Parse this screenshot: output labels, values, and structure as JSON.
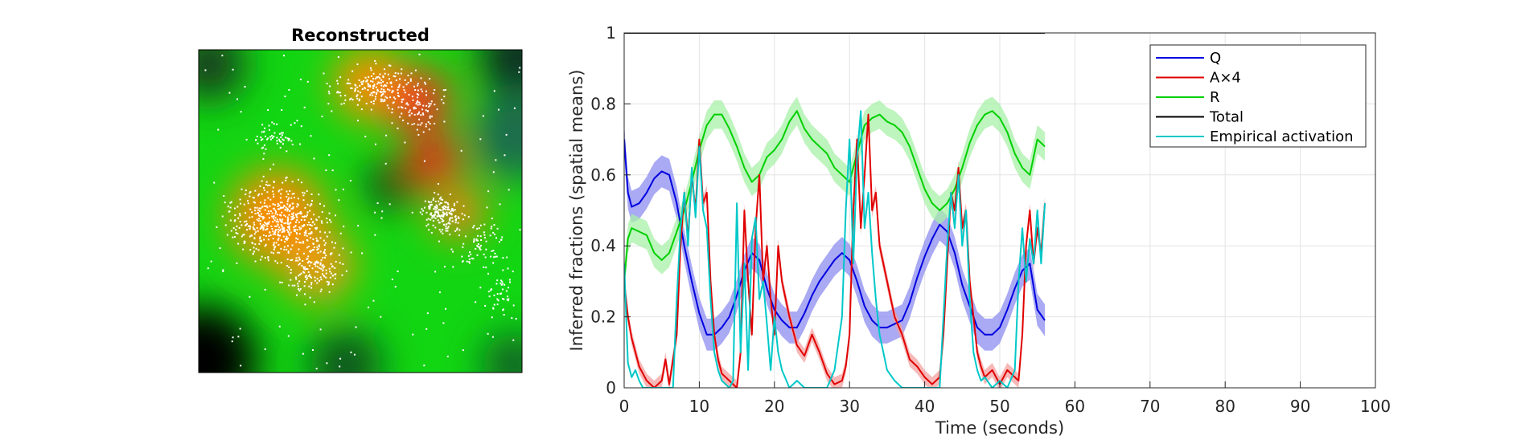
{
  "image_panel": {
    "title": "Reconstructed"
  },
  "chart_data": {
    "type": "line",
    "xlabel": "Time (seconds)",
    "ylabel": "Inferred fractions (spatial means)",
    "xlim": [
      0,
      100
    ],
    "ylim": [
      0,
      1
    ],
    "xticks": [
      0,
      10,
      20,
      30,
      40,
      50,
      60,
      70,
      80,
      90,
      100
    ],
    "yticks": [
      0,
      0.2,
      0.4,
      0.6,
      0.8,
      1
    ],
    "grid": true,
    "legend_position": "top-right",
    "series": [
      {
        "name": "Q",
        "color": "#0000e0",
        "band_color": "#8c8cf0",
        "x": [
          0,
          0.5,
          1,
          2,
          3,
          4,
          5,
          6,
          7,
          8,
          9,
          10,
          11,
          12,
          13,
          14,
          15,
          16,
          17,
          18,
          19,
          20,
          21,
          22,
          23,
          24,
          25,
          26,
          27,
          28,
          29,
          30,
          31,
          32,
          33,
          34,
          35,
          36,
          37,
          38,
          39,
          40,
          41,
          42,
          43,
          44,
          45,
          46,
          47,
          48,
          49,
          50,
          51,
          52,
          53,
          54,
          55,
          56
        ],
        "y": [
          0.7,
          0.55,
          0.51,
          0.52,
          0.55,
          0.59,
          0.61,
          0.6,
          0.52,
          0.4,
          0.3,
          0.21,
          0.15,
          0.15,
          0.17,
          0.2,
          0.26,
          0.33,
          0.38,
          0.36,
          0.28,
          0.22,
          0.19,
          0.17,
          0.17,
          0.21,
          0.26,
          0.3,
          0.33,
          0.36,
          0.38,
          0.36,
          0.3,
          0.23,
          0.19,
          0.17,
          0.17,
          0.18,
          0.19,
          0.24,
          0.31,
          0.37,
          0.42,
          0.46,
          0.44,
          0.38,
          0.29,
          0.23,
          0.17,
          0.15,
          0.15,
          0.17,
          0.22,
          0.28,
          0.33,
          0.35,
          0.22,
          0.19
        ],
        "band": 0.045
      },
      {
        "name": "A×4",
        "color": "#e00000",
        "band_color": "#f4a0a0",
        "x": [
          0,
          0.5,
          1,
          1.5,
          2,
          2.5,
          3,
          4,
          5,
          5.5,
          6,
          7,
          7.5,
          8,
          8.5,
          9,
          9.5,
          10,
          10.5,
          11,
          11.5,
          12,
          12.5,
          13,
          14,
          15,
          15.5,
          16,
          16.5,
          17,
          17.5,
          18,
          18.5,
          19,
          19.5,
          20,
          20.5,
          21,
          22,
          23,
          24,
          25,
          26,
          27,
          28,
          29,
          29.5,
          30,
          30.5,
          31,
          31.5,
          32,
          32.5,
          33,
          33.5,
          34,
          35,
          36,
          37,
          38,
          39,
          40,
          41,
          42,
          42.5,
          43,
          43.5,
          44,
          44.5,
          45,
          45.5,
          46,
          46.5,
          47,
          47.5,
          48,
          49,
          50,
          51,
          52,
          52.5,
          53,
          53.5,
          54,
          54.5,
          55,
          55.5,
          56
        ],
        "y": [
          0.3,
          0.2,
          0.14,
          0.1,
          0.06,
          0.04,
          0.02,
          0,
          0.02,
          0.08,
          0.01,
          0.15,
          0.4,
          0.55,
          0.42,
          0.6,
          0.5,
          0.7,
          0.52,
          0.55,
          0.3,
          0.15,
          0.08,
          0.04,
          0.02,
          0,
          0.1,
          0.5,
          0.3,
          0.15,
          0.45,
          0.6,
          0.3,
          0.4,
          0.25,
          0.15,
          0.4,
          0.3,
          0.2,
          0.12,
          0.09,
          0.15,
          0.1,
          0.04,
          0.01,
          0.02,
          0.06,
          0.15,
          0.5,
          0.7,
          0.45,
          0.6,
          0.77,
          0.5,
          0.55,
          0.4,
          0.3,
          0.2,
          0.15,
          0.08,
          0.06,
          0.03,
          0.01,
          0.03,
          0.15,
          0.35,
          0.55,
          0.5,
          0.62,
          0.45,
          0.5,
          0.3,
          0.2,
          0.1,
          0.06,
          0.03,
          0.05,
          0.01,
          0.05,
          0.03,
          0.02,
          0.15,
          0.4,
          0.5,
          0.35,
          0.45,
          0.38,
          0.52
        ],
        "band": 0.02
      },
      {
        "name": "R",
        "color": "#00d000",
        "band_color": "#a8f0a8",
        "x": [
          0,
          0.5,
          1,
          2,
          3,
          4,
          5,
          6,
          7,
          8,
          9,
          10,
          11,
          12,
          13,
          14,
          15,
          16,
          17,
          18,
          19,
          20,
          21,
          22,
          23,
          24,
          25,
          26,
          27,
          28,
          29,
          30,
          31,
          32,
          33,
          34,
          35,
          36,
          37,
          38,
          39,
          40,
          41,
          42,
          43,
          44,
          45,
          46,
          47,
          48,
          49,
          50,
          51,
          52,
          53,
          54,
          55,
          56
        ],
        "y": [
          0.3,
          0.42,
          0.45,
          0.44,
          0.43,
          0.38,
          0.36,
          0.38,
          0.44,
          0.5,
          0.58,
          0.67,
          0.74,
          0.77,
          0.77,
          0.73,
          0.68,
          0.62,
          0.58,
          0.6,
          0.65,
          0.67,
          0.7,
          0.75,
          0.78,
          0.73,
          0.7,
          0.68,
          0.66,
          0.62,
          0.6,
          0.58,
          0.66,
          0.74,
          0.76,
          0.77,
          0.75,
          0.74,
          0.72,
          0.68,
          0.62,
          0.56,
          0.52,
          0.5,
          0.52,
          0.56,
          0.62,
          0.69,
          0.74,
          0.77,
          0.78,
          0.76,
          0.72,
          0.66,
          0.62,
          0.6,
          0.7,
          0.68
        ],
        "band": 0.04
      },
      {
        "name": "Total",
        "color": "#000000",
        "x": [
          0,
          56
        ],
        "y": [
          1,
          1
        ]
      },
      {
        "name": "Empirical activation",
        "color": "#00c8c8",
        "x": [
          0,
          0.5,
          1,
          1.5,
          2,
          2.5,
          3,
          4,
          5,
          6,
          6.5,
          7,
          7.5,
          8,
          8.5,
          9,
          9.5,
          10,
          10.5,
          11,
          11.5,
          12,
          12.5,
          13,
          14,
          14.5,
          15,
          15.5,
          16,
          16.5,
          17,
          17.5,
          18,
          18.5,
          19,
          19.5,
          20,
          20.5,
          21,
          22,
          23,
          24,
          25,
          26,
          27,
          28,
          29,
          29.5,
          30,
          30.5,
          31,
          31.5,
          32,
          32.5,
          33,
          33.5,
          34,
          34.5,
          35,
          36,
          37,
          38,
          39,
          40,
          41,
          42,
          42.5,
          43,
          43.5,
          44,
          44.5,
          45,
          45.5,
          46,
          46.5,
          47,
          47.5,
          48,
          49,
          50,
          51,
          52,
          52.5,
          53,
          53.5,
          54,
          54.5,
          55,
          55.5,
          56
        ],
        "y": [
          0.35,
          0.07,
          0.03,
          0.05,
          0.02,
          0,
          0,
          0,
          0,
          0,
          0,
          0.25,
          0.45,
          0.55,
          0.4,
          0.62,
          0.48,
          0.68,
          0.5,
          0.45,
          0.25,
          0.1,
          0.05,
          0.02,
          0,
          0.02,
          0.52,
          0.1,
          0.35,
          0.05,
          0.42,
          0.48,
          0.25,
          0.3,
          0.18,
          0.05,
          0.2,
          0.1,
          0.05,
          0,
          0.02,
          0,
          0,
          0,
          0,
          0.05,
          0.2,
          0.5,
          0.7,
          0.35,
          0.65,
          0.78,
          0.45,
          0.55,
          0.38,
          0.25,
          0.15,
          0.1,
          0.05,
          0.02,
          0,
          0,
          0,
          0,
          0,
          0,
          0.2,
          0.4,
          0.55,
          0.45,
          0.6,
          0.4,
          0.5,
          0.25,
          0.1,
          0.05,
          0.02,
          0.03,
          0,
          0.02,
          0,
          0.05,
          0.3,
          0.45,
          0.3,
          0.42,
          0.35,
          0.5,
          0.35,
          0.52
        ]
      }
    ]
  }
}
